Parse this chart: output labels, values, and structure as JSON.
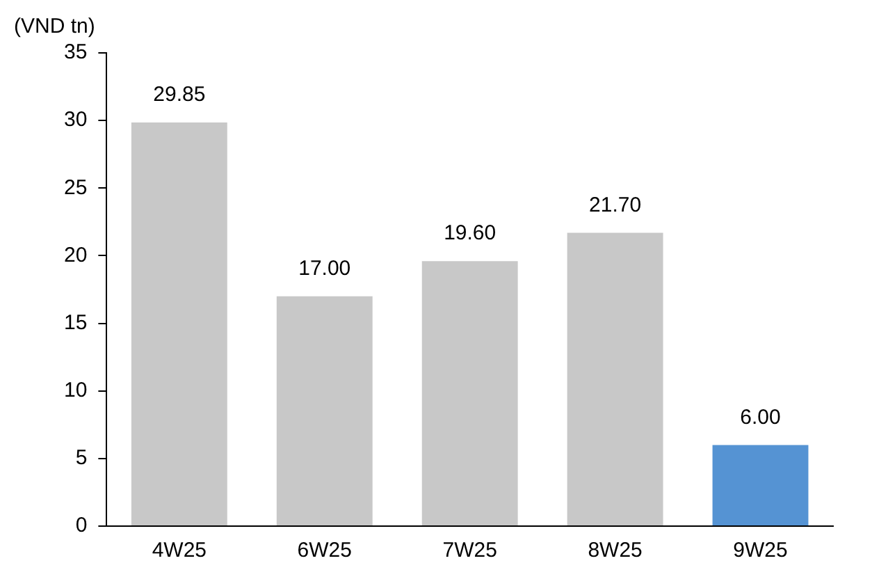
{
  "chart_data": {
    "type": "bar",
    "ylabel": "(VND tn)",
    "categories": [
      "4W25",
      "6W25",
      "7W25",
      "8W25",
      "9W25"
    ],
    "values": [
      29.85,
      17.0,
      19.6,
      21.7,
      6.0
    ],
    "colors": [
      "#c8c8c8",
      "#c8c8c8",
      "#c8c8c8",
      "#c8c8c8",
      "#5593d3"
    ],
    "value_labels": [
      "29.85",
      "17.00",
      "19.60",
      "21.70",
      "6.00"
    ],
    "ylim": [
      0,
      35
    ],
    "yticks": [
      0,
      5,
      10,
      15,
      20,
      25,
      30,
      35
    ],
    "grid": false,
    "legend": false
  }
}
